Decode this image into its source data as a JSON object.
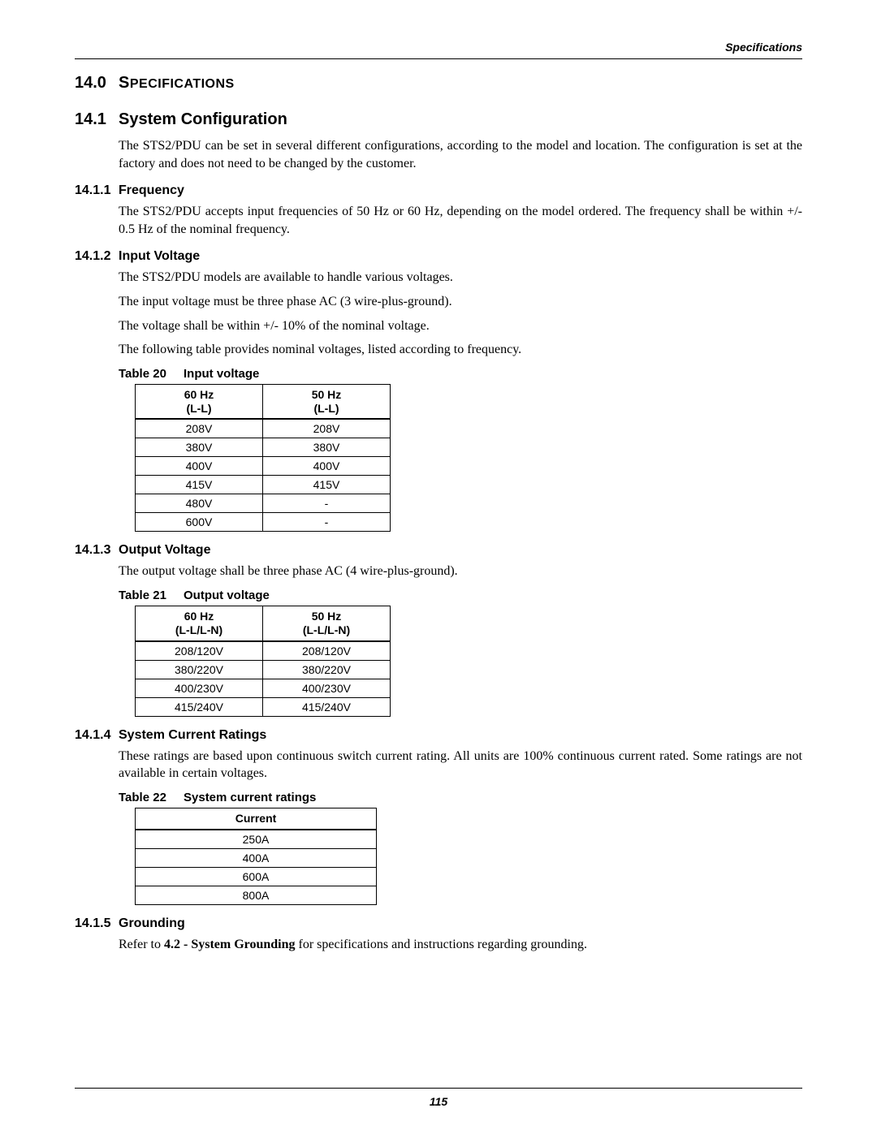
{
  "running_head": "Specifications",
  "page_number": "115",
  "h1": {
    "num": "14.0",
    "title": "Specifications"
  },
  "section_14_1": {
    "num": "14.1",
    "title": "System Configuration",
    "intro": "The STS2/PDU can be set in several different configurations, according to the model and location. The configuration is set at the factory and does not need to be changed by the customer."
  },
  "freq": {
    "num": "14.1.1",
    "title": "Frequency",
    "para": "The STS2/PDU accepts input frequencies of 50 Hz or 60 Hz, depending on the model ordered. The frequency shall be within +/- 0.5 Hz of the nominal frequency."
  },
  "input_voltage": {
    "num": "14.1.2",
    "title": "Input Voltage",
    "p1": "The STS2/PDU models are available to handle various voltages.",
    "p2": "The input voltage must be three phase AC (3 wire-plus-ground).",
    "p3": "The voltage shall be within +/- 10% of the nominal voltage.",
    "p4": "The following table provides nominal voltages, listed according to frequency."
  },
  "table20": {
    "label": "Table 20",
    "caption": "Input voltage",
    "col1_l1": "60 Hz",
    "col1_l2": "(L-L)",
    "col2_l1": "50 Hz",
    "col2_l2": "(L-L)",
    "rows": [
      [
        "208V",
        "208V"
      ],
      [
        "380V",
        "380V"
      ],
      [
        "400V",
        "400V"
      ],
      [
        "415V",
        "415V"
      ],
      [
        "480V",
        "-"
      ],
      [
        "600V",
        "-"
      ]
    ]
  },
  "output_voltage": {
    "num": "14.1.3",
    "title": "Output Voltage",
    "p1": "The output voltage shall be three phase AC (4 wire-plus-ground)."
  },
  "table21": {
    "label": "Table 21",
    "caption": "Output voltage",
    "col1_l1": "60 Hz",
    "col1_l2": "(L-L/L-N)",
    "col2_l1": "50 Hz",
    "col2_l2": "(L-L/L-N)",
    "rows": [
      [
        "208/120V",
        "208/120V"
      ],
      [
        "380/220V",
        "380/220V"
      ],
      [
        "400/230V",
        "400/230V"
      ],
      [
        "415/240V",
        "415/240V"
      ]
    ]
  },
  "current_ratings": {
    "num": "14.1.4",
    "title": "System Current Ratings",
    "p1": "These ratings are based upon continuous switch current rating. All units are 100% continuous current rated. Some ratings are not available in certain voltages."
  },
  "table22": {
    "label": "Table 22",
    "caption": "System current ratings",
    "col1": "Current",
    "rows": [
      "250A",
      "400A",
      "600A",
      "800A"
    ]
  },
  "grounding": {
    "num": "14.1.5",
    "title": "Grounding",
    "prefix": "Refer to ",
    "ref": "4.2 - System Grounding",
    "suffix": " for specifications and instructions regarding grounding."
  }
}
